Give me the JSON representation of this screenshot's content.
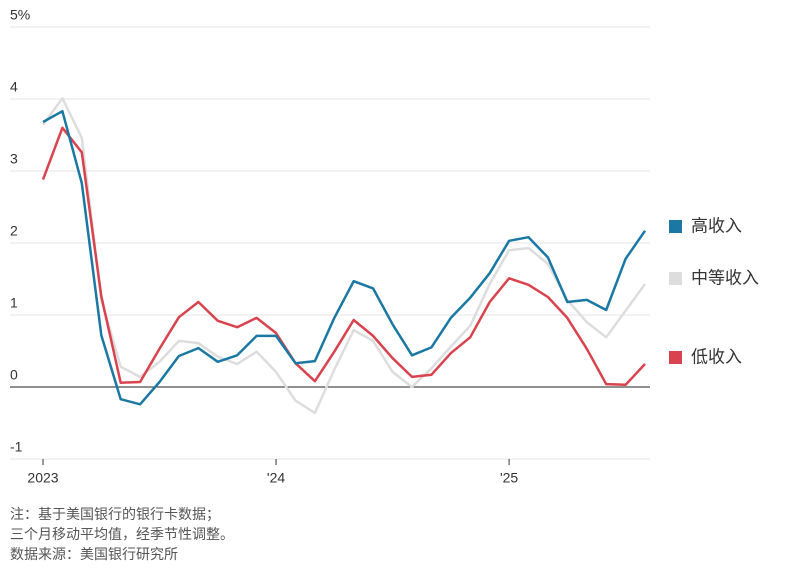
{
  "chart_data": {
    "type": "line",
    "categories": [
      "2023",
      null,
      null,
      null,
      null,
      null,
      null,
      null,
      null,
      null,
      null,
      null,
      "'24",
      null,
      null,
      null,
      null,
      null,
      null,
      null,
      null,
      null,
      null,
      null,
      "'25",
      null,
      null,
      null,
      null,
      null,
      null,
      null
    ],
    "series": [
      {
        "name": "高收入",
        "color": "#1b78a3",
        "values": [
          3.68,
          3.83,
          2.83,
          0.72,
          -0.17,
          -0.24,
          0.07,
          0.43,
          0.54,
          0.35,
          0.44,
          0.71,
          0.71,
          0.33,
          0.36,
          0.96,
          1.47,
          1.37,
          0.87,
          0.44,
          0.55,
          0.96,
          1.24,
          1.58,
          2.03,
          2.08,
          1.8,
          1.18,
          1.21,
          1.07,
          1.78,
          2.17
        ]
      },
      {
        "name": "中等收入",
        "color": "#dddddd",
        "values": [
          3.64,
          4.01,
          3.46,
          1.21,
          0.28,
          0.14,
          0.35,
          0.64,
          0.61,
          0.42,
          0.32,
          0.49,
          0.21,
          -0.19,
          -0.36,
          0.24,
          0.79,
          0.64,
          0.21,
          0.0,
          0.26,
          0.56,
          0.85,
          1.43,
          1.9,
          1.93,
          1.71,
          1.21,
          0.9,
          0.69,
          1.06,
          1.43
        ]
      },
      {
        "name": "低收入",
        "color": "#d9434e",
        "values": [
          2.88,
          3.6,
          3.26,
          1.26,
          0.06,
          0.07,
          0.53,
          0.97,
          1.18,
          0.92,
          0.83,
          0.96,
          0.75,
          0.33,
          0.08,
          0.49,
          0.93,
          0.71,
          0.4,
          0.14,
          0.17,
          0.47,
          0.69,
          1.18,
          1.51,
          1.42,
          1.25,
          0.96,
          0.53,
          0.04,
          0.03,
          0.32
        ]
      }
    ],
    "ylim": [
      -1,
      5
    ],
    "yticks": [
      -1,
      0,
      1,
      2,
      3,
      4,
      {
        "value": 5,
        "label": "5%"
      }
    ],
    "grid": true,
    "notes": [
      "注：基于美国银行的银行卡数据；",
      "三个月移动平均值，经季节性调整。",
      "数据来源：美国银行研究所"
    ]
  }
}
